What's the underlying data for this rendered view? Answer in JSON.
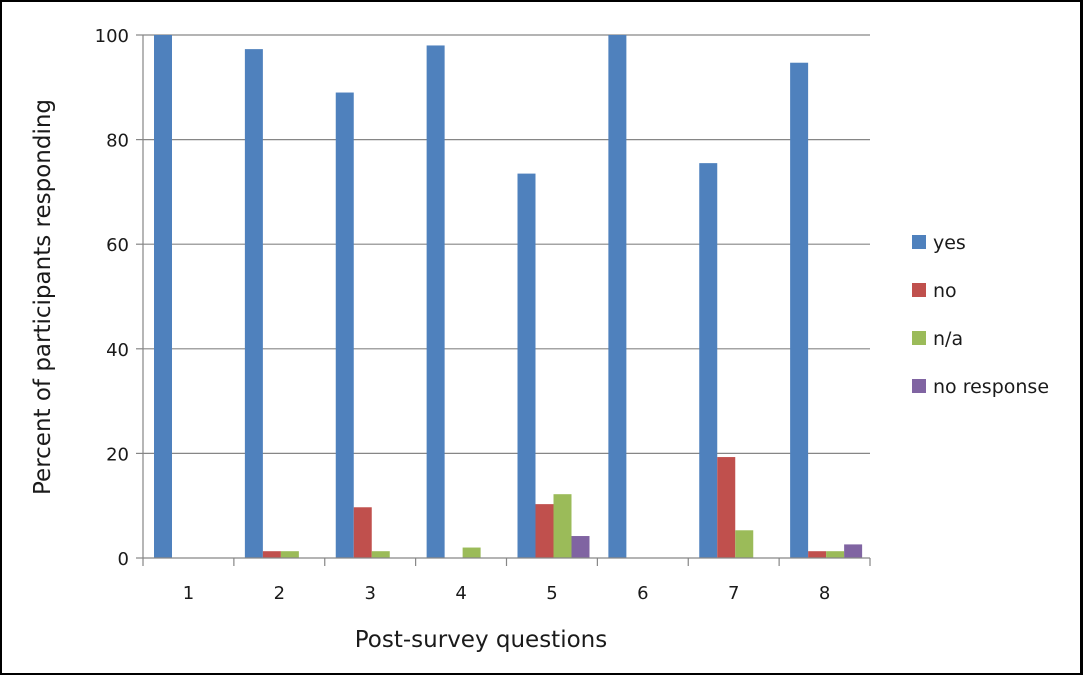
{
  "chart_data": {
    "type": "bar",
    "title": "",
    "xlabel": "Post-survey questions",
    "ylabel": "Percent of participants responding",
    "ylim": [
      0,
      100
    ],
    "yticks": [
      0,
      20,
      40,
      60,
      80,
      100
    ],
    "grid": true,
    "legend_position": "right",
    "categories": [
      "1",
      "2",
      "3",
      "4",
      "5",
      "6",
      "7",
      "8"
    ],
    "series": [
      {
        "name": "yes",
        "color": "#4F81BD",
        "values": [
          100,
          97.3,
          89,
          98,
          73.5,
          100,
          75.5,
          94.7
        ]
      },
      {
        "name": "no",
        "color": "#C0504D",
        "values": [
          0,
          1.3,
          9.7,
          0,
          10.3,
          0,
          19.3,
          1.3
        ]
      },
      {
        "name": "n/a",
        "color": "#9BBB59",
        "values": [
          0,
          1.3,
          1.3,
          2,
          12.2,
          0,
          5.3,
          1.3
        ]
      },
      {
        "name": "no response",
        "color": "#8064A2",
        "values": [
          0,
          0,
          0,
          0,
          4.2,
          0,
          0,
          2.6
        ]
      }
    ]
  }
}
